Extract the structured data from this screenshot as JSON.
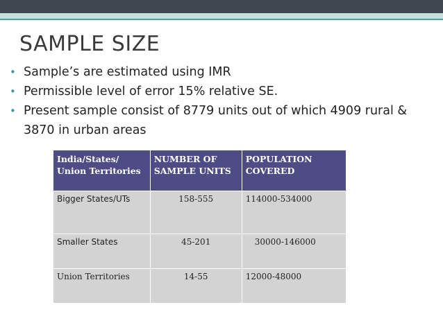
{
  "slide": {
    "title": "SAMPLE SIZE",
    "bullets": [
      "Sample’s are estimated using IMR",
      "Permissible level of error 15% relative SE.",
      "Present sample consist of 8779 units out of which 4909 rural & 3870 in urban areas"
    ]
  },
  "table": {
    "headers": [
      "India/States/ Union Territories",
      "NUMBER OF SAMPLE UNITS",
      "POPULATION COVERED"
    ],
    "rows": [
      [
        "Bigger States/UTs",
        "158-555",
        "114000-534000"
      ],
      [
        "Smaller States",
        "45-201",
        "30000-146000"
      ],
      [
        "Union Territories",
        "14-55",
        "12000-48000"
      ]
    ]
  },
  "colors": {
    "header_bg": "#4f4b84",
    "row_bg": "#d3d3d3",
    "accent": "#3a9a9a",
    "topbar": "#3f4750"
  }
}
